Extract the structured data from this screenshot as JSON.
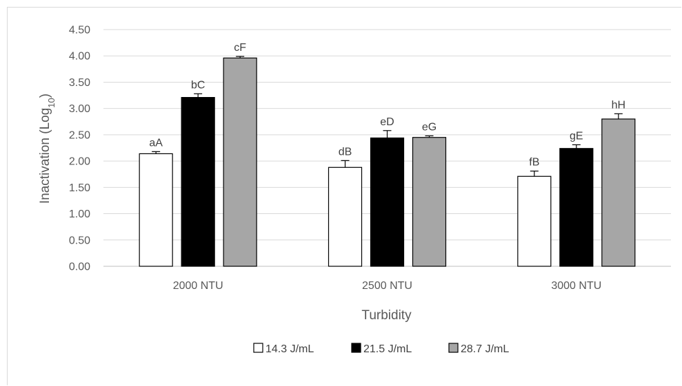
{
  "chart_data": {
    "type": "bar",
    "title": "",
    "xlabel": "Turbidity",
    "ylabel_main": "Inactivation (Log",
    "ylabel_sub": "10",
    "ylabel_close": ")",
    "categories": [
      "2000 NTU",
      "2500 NTU",
      "3000 NTU"
    ],
    "ylim": [
      0,
      4.5
    ],
    "ytick_step": 0.5,
    "ytick_labels": [
      "0.00",
      "0.50",
      "1.00",
      "1.50",
      "2.00",
      "2.50",
      "3.00",
      "3.50",
      "4.00",
      "4.50"
    ],
    "grid": true,
    "legend_position": "bottom",
    "series": [
      {
        "name": "14.3 J/mL",
        "color": "#ffffff",
        "values": [
          2.14,
          1.88,
          1.71
        ],
        "errors": [
          0.04,
          0.13,
          0.1
        ],
        "labels": [
          "aA",
          "dB",
          "fB"
        ]
      },
      {
        "name": "21.5 J/mL",
        "color": "#000000",
        "values": [
          3.21,
          2.44,
          2.24
        ],
        "errors": [
          0.07,
          0.14,
          0.07
        ],
        "labels": [
          "bC",
          "eD",
          "gE"
        ]
      },
      {
        "name": "28.7 J/mL",
        "color": "#a6a6a6",
        "values": [
          3.96,
          2.45,
          2.8
        ],
        "errors": [
          0.03,
          0.03,
          0.1
        ],
        "labels": [
          "cF",
          "eG",
          "hH"
        ]
      }
    ]
  }
}
